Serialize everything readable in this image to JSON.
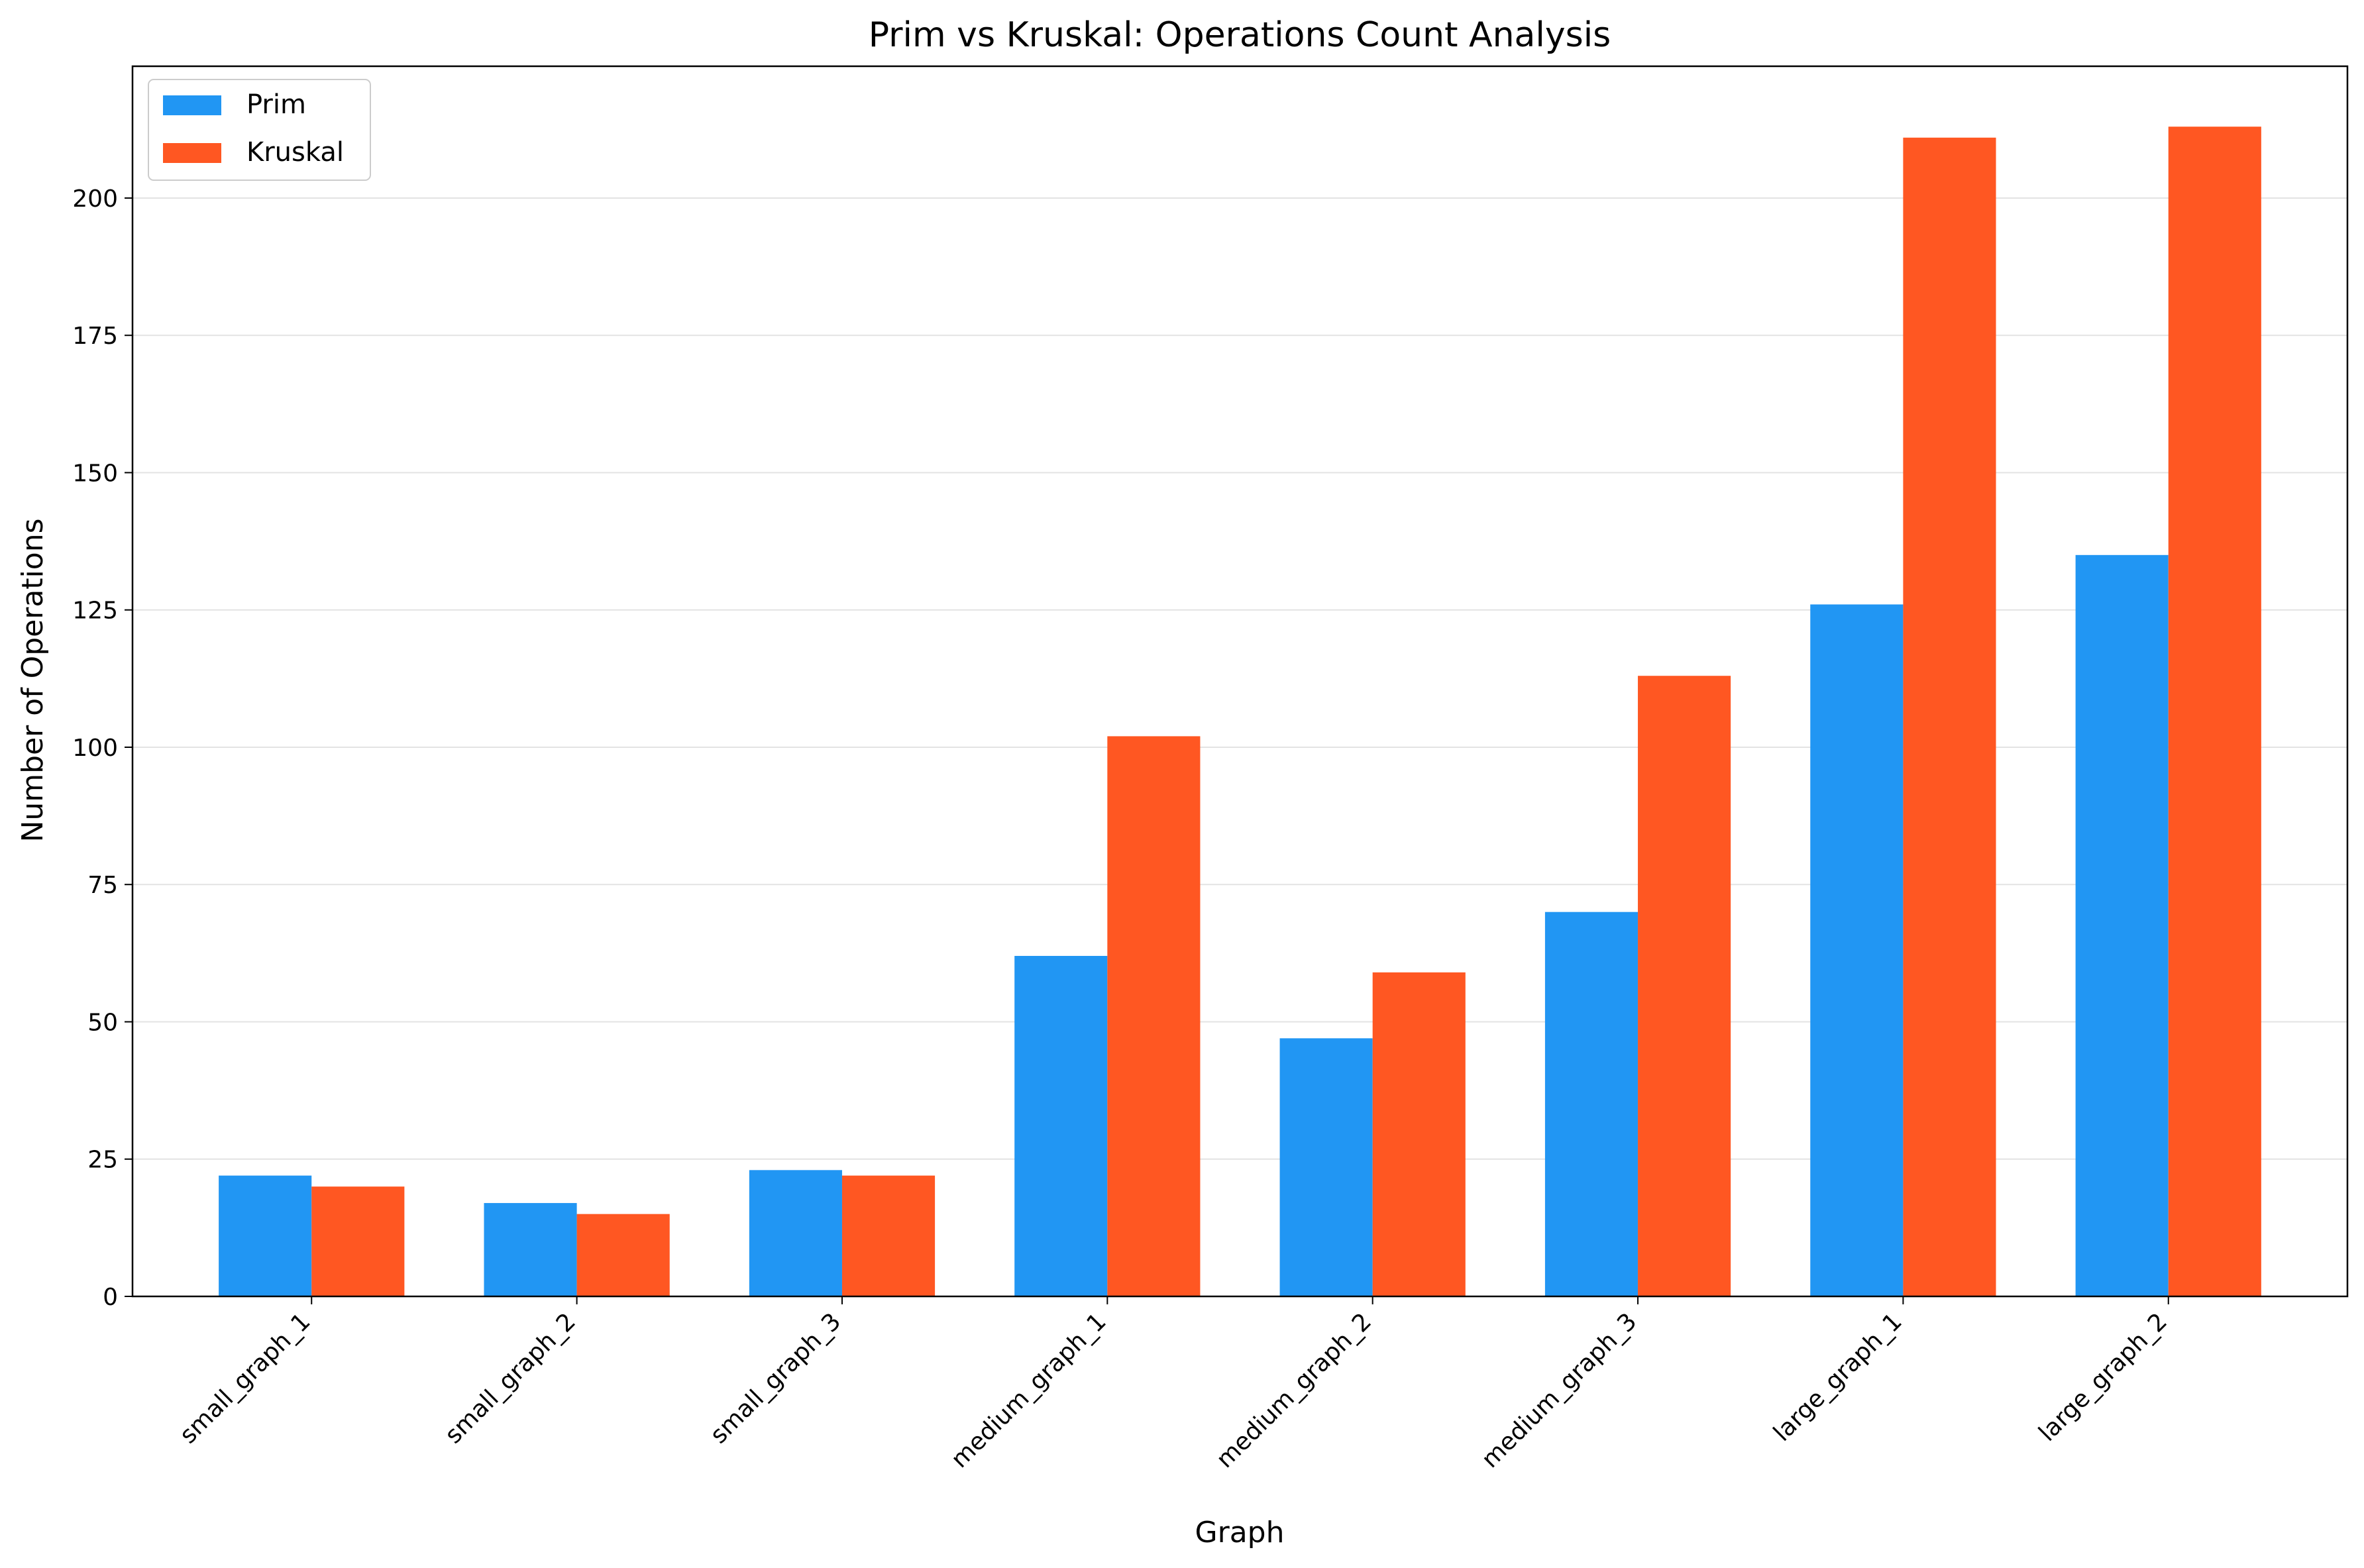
{
  "chart_data": {
    "type": "bar",
    "title": "Prim vs Kruskal: Operations Count Analysis",
    "xlabel": "Graph",
    "ylabel": "Number of Operations",
    "categories": [
      "small_graph_1",
      "small_graph_2",
      "small_graph_3",
      "medium_graph_1",
      "medium_graph_2",
      "medium_graph_3",
      "large_graph_1",
      "large_graph_2"
    ],
    "series": [
      {
        "name": "Prim",
        "color": "#2196F3",
        "values": [
          22,
          17,
          23,
          62,
          47,
          70,
          126,
          135
        ]
      },
      {
        "name": "Kruskal",
        "color": "#FF5722",
        "values": [
          20,
          15,
          22,
          102,
          59,
          113,
          211,
          213
        ]
      }
    ],
    "ylim": [
      0,
      224
    ],
    "yticks": [
      0,
      25,
      50,
      75,
      100,
      125,
      150,
      175,
      200
    ],
    "grid": "horizontal",
    "legend_position": "top-left"
  }
}
